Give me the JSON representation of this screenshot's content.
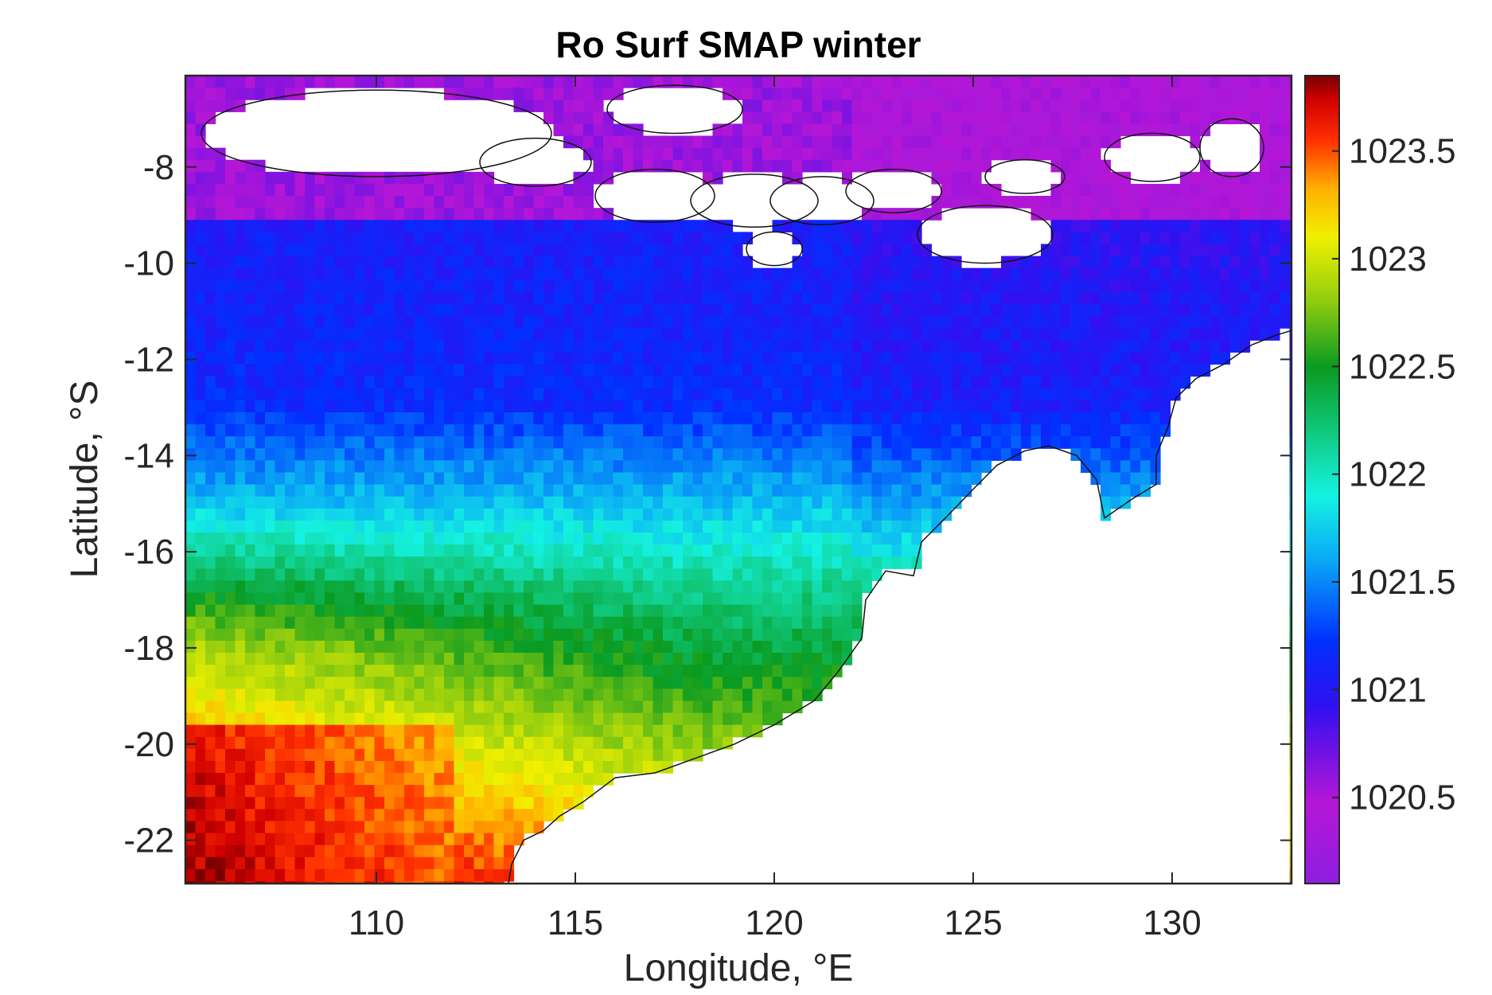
{
  "chart_data": {
    "type": "heatmap",
    "title": "Ro Surf SMAP winter",
    "xlabel": "Longitude, °E",
    "ylabel": "Latitude, °S",
    "xlim": [
      105.2,
      133.0
    ],
    "ylim": [
      -22.9,
      -6.1
    ],
    "xticks": [
      "110",
      "115",
      "120",
      "125",
      "130"
    ],
    "xtick_values": [
      110,
      115,
      120,
      125,
      130
    ],
    "yticks": [
      "-8",
      "-10",
      "-12",
      "-14",
      "-16",
      "-18",
      "-20",
      "-22"
    ],
    "ytick_values": [
      -8,
      -10,
      -12,
      -14,
      -16,
      -18,
      -20,
      -22
    ],
    "colorbar": {
      "min": 1020.1,
      "max": 1023.85,
      "ticks": [
        "1020.5",
        "1021",
        "1021.5",
        "1022",
        "1022.5",
        "1023",
        "1023.5"
      ],
      "tick_values": [
        1020.5,
        1021,
        1021.5,
        1022,
        1022.5,
        1023,
        1023.5
      ],
      "colormap": "jet-like (violet to dark red)"
    },
    "field_summary": {
      "grid_resolution_deg": 0.25,
      "approx_values_by_region": [
        {
          "region": "north coast near Java (lat -7 to -9)",
          "value": 1020.7
        },
        {
          "region": "band lat -9 to -13",
          "value": 1021.1
        },
        {
          "region": "band lat -13 to -16",
          "value": 1021.7
        },
        {
          "region": "band lat -16 to -18",
          "value": 1022.2
        },
        {
          "region": "west lat -18 to -19.5",
          "value": 1022.8
        },
        {
          "region": "southwest corner lat -20 to -23",
          "value": 1023.4
        }
      ],
      "land_masked": true,
      "coastline": "black outline of Java, Lesser Sunda Islands and NW Australia"
    }
  }
}
